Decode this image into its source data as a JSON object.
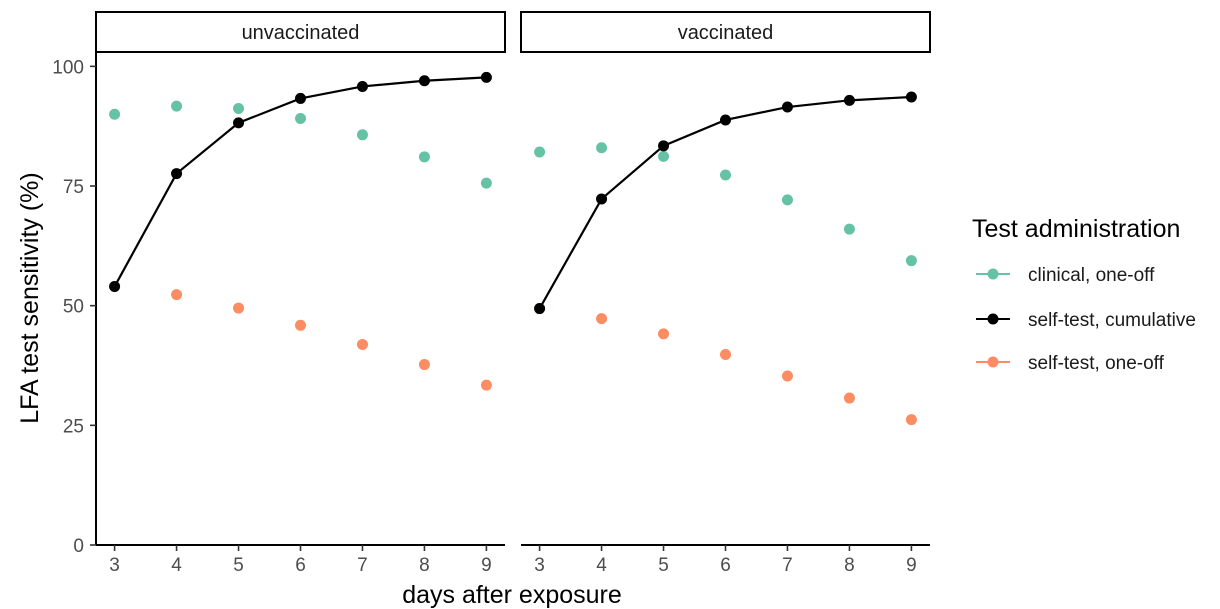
{
  "chart_data": {
    "type": "line",
    "ylabel": "LFA test sensitivity (%)",
    "xlabel": "days after exposure",
    "x": [
      3,
      4,
      5,
      6,
      7,
      8,
      9
    ],
    "xlim": [
      2.7,
      9.3
    ],
    "ylim": [
      0,
      103
    ],
    "yticks": [
      0,
      25,
      50,
      75,
      100
    ],
    "grid": false,
    "legend": {
      "title": "Test administration",
      "placement": "right",
      "entries": [
        {
          "series": "clinical, one-off",
          "label": "clinical, one-off",
          "color": "#66c2a5",
          "line": false
        },
        {
          "series": "self-test, cumulative",
          "label": "self-test, cumulative",
          "color": "#000000",
          "line": true
        },
        {
          "series": "self-test, one-off",
          "label": "self-test, one-off",
          "color": "#fc8d62",
          "line": false
        }
      ]
    },
    "panels": [
      {
        "label": "unvaccinated",
        "series": [
          {
            "name": "clinical, one-off",
            "values": [
              90,
              91.7,
              91.2,
              89.1,
              85.7,
              81.1,
              75.6
            ]
          },
          {
            "name": "self-test, cumulative",
            "values": [
              54,
              77.6,
              88.2,
              93.3,
              95.8,
              97,
              97.7
            ]
          },
          {
            "name": "self-test, one-off",
            "values": [
              54,
              52.3,
              49.5,
              45.9,
              41.9,
              37.7,
              33.4
            ]
          }
        ]
      },
      {
        "label": "vaccinated",
        "series": [
          {
            "name": "clinical, one-off",
            "values": [
              82.1,
              83,
              81.2,
              77.3,
              72.1,
              66,
              59.4
            ]
          },
          {
            "name": "self-test, cumulative",
            "values": [
              49.4,
              72.3,
              83.4,
              88.8,
              91.5,
              92.9,
              93.6
            ]
          },
          {
            "name": "self-test, one-off",
            "values": [
              49.4,
              47.3,
              44.1,
              39.8,
              35.3,
              30.7,
              26.2
            ]
          }
        ]
      }
    ]
  }
}
